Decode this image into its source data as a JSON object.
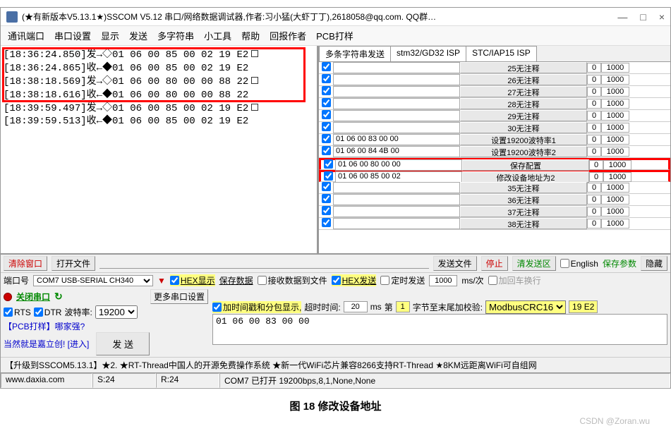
{
  "window": {
    "title": "(★有新版本V5.13.1★)SSCOM V5.12 串口/网络数据调试器,作者:习小猛(大虾丁丁),2618058@qq.com. QQ群…",
    "minimize": "—",
    "maximize": "□",
    "close": "×"
  },
  "menu": [
    "通讯端口",
    "串口设置",
    "显示",
    "发送",
    "多字符串",
    "小工具",
    "帮助",
    "回报作者",
    "PCB打样"
  ],
  "log": [
    {
      "t": "[18:36:24.850]发→◇01 06 00 85 00 02 19 E2",
      "sq": true
    },
    {
      "t": "[18:36:24.865]收←◆01 06 00 85 00 02 19 E2",
      "sq": false
    },
    {
      "t": "[18:38:18.569]发→◇01 06 00 80 00 00 88 22",
      "sq": true
    },
    {
      "t": "[18:38:18.616]收←◆01 06 00 80 00 00 88 22",
      "sq": false
    },
    {
      "t": "[18:39:59.497]发→◇01 06 00 85 00 02 19 E2",
      "sq": true
    },
    {
      "t": "[18:39:59.513]收←◆01 06 00 85 00 02 19 E2",
      "sq": false
    }
  ],
  "tabs": [
    "多条字符串发送",
    "stm32/GD32 ISP",
    "STC/IAP15 ISP"
  ],
  "rows": [
    {
      "chk": true,
      "cmd": "",
      "btn": "25无注释",
      "n": "0",
      "ms": "1000"
    },
    {
      "chk": true,
      "cmd": "",
      "btn": "26无注释",
      "n": "0",
      "ms": "1000"
    },
    {
      "chk": true,
      "cmd": "",
      "btn": "27无注释",
      "n": "0",
      "ms": "1000"
    },
    {
      "chk": true,
      "cmd": "",
      "btn": "28无注释",
      "n": "0",
      "ms": "1000"
    },
    {
      "chk": true,
      "cmd": "",
      "btn": "29无注释",
      "n": "0",
      "ms": "1000"
    },
    {
      "chk": true,
      "cmd": "",
      "btn": "30无注释",
      "n": "0",
      "ms": "1000"
    },
    {
      "chk": true,
      "cmd": "01 06 00 83 00 00",
      "btn": "设置19200波特率1",
      "n": "0",
      "ms": "1000"
    },
    {
      "chk": true,
      "cmd": "01 06 00 84 4B 00",
      "btn": "设置19200波特率2",
      "n": "0",
      "ms": "1000"
    },
    {
      "chk": true,
      "cmd": "01 06 00 80 00 00",
      "btn": "保存配置",
      "n": "0",
      "ms": "1000",
      "hl": true
    },
    {
      "chk": true,
      "cmd": "01 06 00 85 00 02",
      "btn": "修改设备地址为2",
      "n": "0",
      "ms": "1000",
      "hl": true
    },
    {
      "chk": true,
      "cmd": "",
      "btn": "35无注释",
      "n": "0",
      "ms": "1000"
    },
    {
      "chk": true,
      "cmd": "",
      "btn": "36无注释",
      "n": "0",
      "ms": "1000"
    },
    {
      "chk": true,
      "cmd": "",
      "btn": "37无注释",
      "n": "0",
      "ms": "1000"
    },
    {
      "chk": true,
      "cmd": "",
      "btn": "38无注释",
      "n": "0",
      "ms": "1000"
    }
  ],
  "tb1": {
    "clear": "清除窗口",
    "open": "打开文件",
    "sendfile": "发送文件",
    "stop": "停止",
    "clearsend": "清发送区",
    "english": "English",
    "save": "保存参数",
    "hide": "隐藏"
  },
  "tb2": {
    "portlbl": "端口号",
    "port": "COM7 USB-SERIAL CH340",
    "hexdisp": "HEX显示",
    "savedata": "保存数据",
    "recvfile": "接收数据到文件",
    "hexsend": "HEX发送",
    "timed": "定时发送",
    "interval": "1000",
    "intervalunit": "ms/次",
    "crlf": "加回车换行"
  },
  "tb3": {
    "close": "关闭串口",
    "more": "更多串口设置",
    "timestamp": "加时间戳和分包显示,",
    "timeoutlbl": "超时时间:",
    "timeout": "20",
    "ms": "ms",
    "firstlbl": "第",
    "first": "1",
    "taillbl": "字节至末尾加校验:",
    "crc": "ModbusCRC16",
    "crcval": "19 E2",
    "rts": "RTS",
    "dtr": "DTR",
    "baudlbl": "波特率:",
    "baud": "19200",
    "data": "01 06 00 83 00 00",
    "pcb": "【PCB打样】哪家强?",
    "jlc": "当然就是嘉立创! [进入]",
    "send": "发  送"
  },
  "ad": "【升级到SSCOM5.13.1】★2. ★RT-Thread中国人的开源免费操作系统 ★新一代WiFi芯片兼容8266支持RT-Thread ★8KM远距离WiFi可自组网",
  "status": {
    "url": "www.daxia.com",
    "s": "S:24",
    "r": "R:24",
    "info": "COM7 已打开  19200bps,8,1,None,None"
  },
  "caption": "图 18 修改设备地址",
  "watermark": "CSDN @Zoran.wu"
}
